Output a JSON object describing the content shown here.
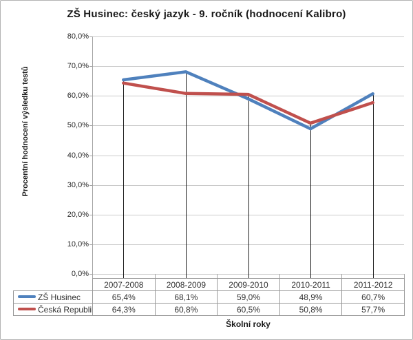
{
  "chart_data": {
    "type": "line",
    "title": "ZŠ Husinec: český jazyk - 9. ročník (hodnocení Kalibro)",
    "xlabel": "Školní roky",
    "ylabel": "Procentní hodnocení výsledku testů",
    "categories": [
      "2007-2008",
      "2008-2009",
      "2009-2010",
      "2010-2011",
      "2011-2012"
    ],
    "series": [
      {
        "name": "ZŠ Husinec",
        "color": "#4F81BD",
        "values": [
          65.4,
          68.1,
          59.0,
          48.9,
          60.7
        ],
        "display": [
          "65,4%",
          "68,1%",
          "59,0%",
          "48,9%",
          "60,7%"
        ]
      },
      {
        "name": "Česká Republika",
        "color": "#C0504D",
        "values": [
          64.3,
          60.8,
          60.5,
          50.8,
          57.7
        ],
        "display": [
          "64,3%",
          "60,8%",
          "60,5%",
          "50,8%",
          "57,7%"
        ]
      }
    ],
    "ylim": [
      0,
      80
    ],
    "y_tick_step": 10,
    "y_ticks": [
      "80,0%",
      "70,0%",
      "60,0%",
      "50,0%",
      "40,0%",
      "30,0%",
      "20,0%",
      "10,0%",
      "0,0%"
    ],
    "grid": "horizontal",
    "legend_position": "table-left",
    "drop_lines": true
  },
  "palette": {
    "axis_line": "#a3a3a3",
    "gridline": "#c9c9c9",
    "drop_line": "#1a1a1a",
    "table_border": "#999999",
    "text": "#333333",
    "background": "#ffffff"
  }
}
